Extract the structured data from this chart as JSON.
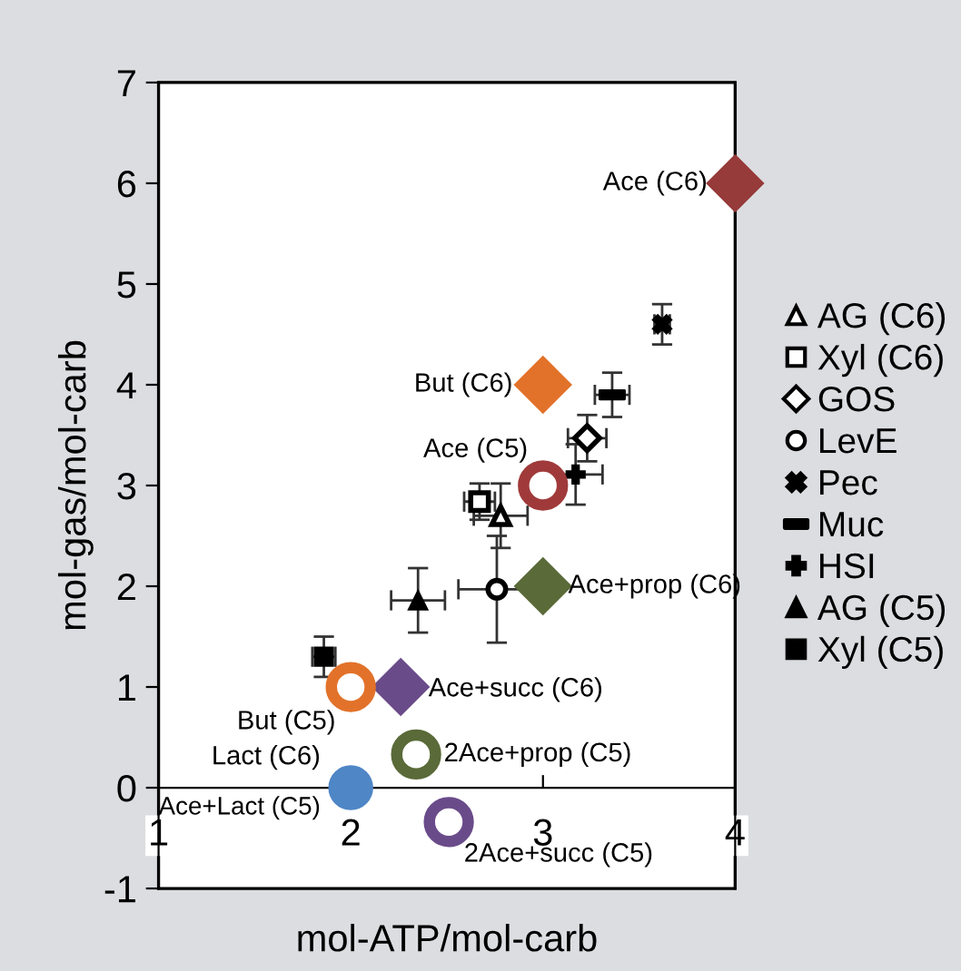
{
  "chart_data": {
    "type": "scatter",
    "xlabel": "mol-ATP/mol-carb",
    "ylabel": "mol-gas/mol-carb",
    "xlim": [
      1,
      4
    ],
    "ylim": [
      -1,
      7
    ],
    "xticks": [
      1,
      2,
      3,
      4
    ],
    "yticks": [
      -1,
      0,
      1,
      2,
      3,
      4,
      5,
      6,
      7
    ],
    "grid": false,
    "legend": "right",
    "series": [
      {
        "name": "AG (C6)",
        "color": "#000000",
        "marker": "triangle",
        "x": [
          2.78
        ],
        "values": [
          2.7
        ],
        "errors": [
          0.32
        ],
        "xerrors": [
          0.14
        ]
      },
      {
        "name": "Xyl (C6)",
        "color": "#000000",
        "marker": "square",
        "x": [
          2.67
        ],
        "values": [
          2.84
        ],
        "errors": [
          0.18
        ],
        "xerrors": [
          0.08
        ]
      },
      {
        "name": "GOS",
        "color": "#000000",
        "marker": "diamond",
        "x": [
          3.23
        ],
        "values": [
          3.47
        ],
        "errors": [
          0.23
        ],
        "xerrors": [
          0.1
        ]
      },
      {
        "name": "LevE",
        "color": "#000000",
        "marker": "circle",
        "x": [
          2.76
        ],
        "values": [
          1.97
        ],
        "errors": [
          0.53
        ],
        "xerrors": [
          0.2
        ]
      },
      {
        "name": "Pec",
        "color": "#000000",
        "marker": "cross",
        "x": [
          3.62
        ],
        "values": [
          4.6
        ],
        "errors": [
          0.2
        ],
        "xerrors": [
          0.04
        ]
      },
      {
        "name": "Muc",
        "color": "#000000",
        "marker": "square",
        "x": [
          3.36
        ],
        "values": [
          3.9
        ],
        "errors": [
          0.22
        ],
        "xerrors": [
          0.09
        ]
      },
      {
        "name": "HSI",
        "color": "#000000",
        "marker": "cross",
        "x": [
          3.17
        ],
        "values": [
          3.11
        ],
        "errors": [
          0.3
        ],
        "xerrors": [
          0.14
        ]
      },
      {
        "name": "AG (C5)",
        "color": "#000000",
        "marker": "triangle",
        "x": [
          2.35
        ],
        "values": [
          1.86
        ],
        "errors": [
          0.32
        ],
        "xerrors": [
          0.14
        ]
      },
      {
        "name": "Xyl (C5)",
        "color": "#000000",
        "marker": "square",
        "x": [
          1.86
        ],
        "values": [
          1.3
        ],
        "errors": [
          0.2
        ],
        "xerrors": [
          0.06
        ]
      },
      {
        "marker": "diamond",
        "x": [
          4,
          3,
          3,
          2.26
        ],
        "values": [
          6,
          4,
          2,
          1
        ],
        "colors": [
          "#963a3a",
          "#e2722a",
          "#5a6a38",
          "#6a4b8a"
        ]
      },
      {
        "marker": "circle",
        "x": [
          3,
          2,
          2.34,
          2.51
        ],
        "values": [
          3,
          1,
          0.33,
          -0.34
        ],
        "colors": [
          "#a03a3a",
          "#e2722a",
          "#5a6a38",
          "#6a4b8a"
        ]
      },
      {
        "marker": "circle",
        "x": [
          2
        ],
        "values": [
          0
        ],
        "colors": [
          "#4f86c6"
        ]
      }
    ],
    "annotations": [
      {
        "text": "Ace (C6)",
        "x": 4,
        "y": 6
      },
      {
        "text": "But (C6)",
        "x": 3,
        "y": 4
      },
      {
        "text": "Ace (C5)",
        "x": 3,
        "y": 3
      },
      {
        "text": "Ace+prop (C6)",
        "x": 3,
        "y": 2
      },
      {
        "text": "Ace+succ (C6)",
        "x": 2.26,
        "y": 1
      },
      {
        "text": "But (C5)",
        "x": 2,
        "y": 1
      },
      {
        "text": "2Ace+prop (C5)",
        "x": 2.34,
        "y": 0.33
      },
      {
        "text": "Lact (C6)",
        "x": 2,
        "y": 0
      },
      {
        "text": "Ace+Lact (C5)",
        "x": 2,
        "y": 0
      },
      {
        "text": "2Ace+succ (C5)",
        "x": 2.51,
        "y": -0.34
      }
    ]
  }
}
